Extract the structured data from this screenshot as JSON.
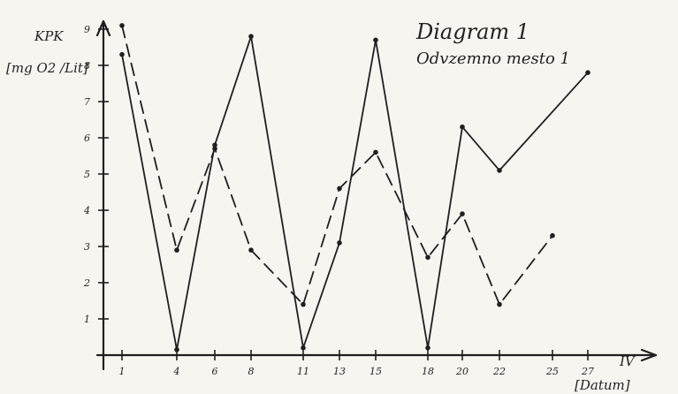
{
  "chart_data": {
    "type": "line",
    "title": "Diagram 1",
    "subtitle": "Odvzemno mesto 1",
    "ylabel": "KPK",
    "yunits": "[mg O2 /Lit]",
    "xlabel": "[Datum]",
    "xlabel_extra": "IV",
    "x_ticks": [
      "1",
      "4",
      "6",
      "8",
      "11",
      "13",
      "15",
      "18",
      "20",
      "22",
      "25",
      "27"
    ],
    "y_ticks": [
      "1",
      "2",
      "3",
      "4",
      "5",
      "6",
      "7",
      "8",
      "9"
    ],
    "xlim": [
      0,
      29
    ],
    "ylim": [
      0,
      9.2
    ],
    "grid": false,
    "legend": "none",
    "series": [
      {
        "style": "solid",
        "x": [
          1,
          4,
          6,
          8,
          11,
          13,
          15,
          18,
          20,
          22,
          27
        ],
        "y": [
          8.3,
          0.15,
          5.8,
          8.8,
          0.2,
          3.1,
          8.7,
          0.2,
          6.3,
          5.1,
          7.8
        ]
      },
      {
        "style": "dashed",
        "x": [
          1,
          4,
          6,
          8,
          11,
          13,
          15,
          18,
          20,
          22,
          25
        ],
        "y": [
          9.1,
          2.9,
          5.7,
          2.9,
          1.4,
          4.6,
          5.6,
          2.7,
          3.9,
          1.4,
          3.3
        ]
      }
    ]
  }
}
